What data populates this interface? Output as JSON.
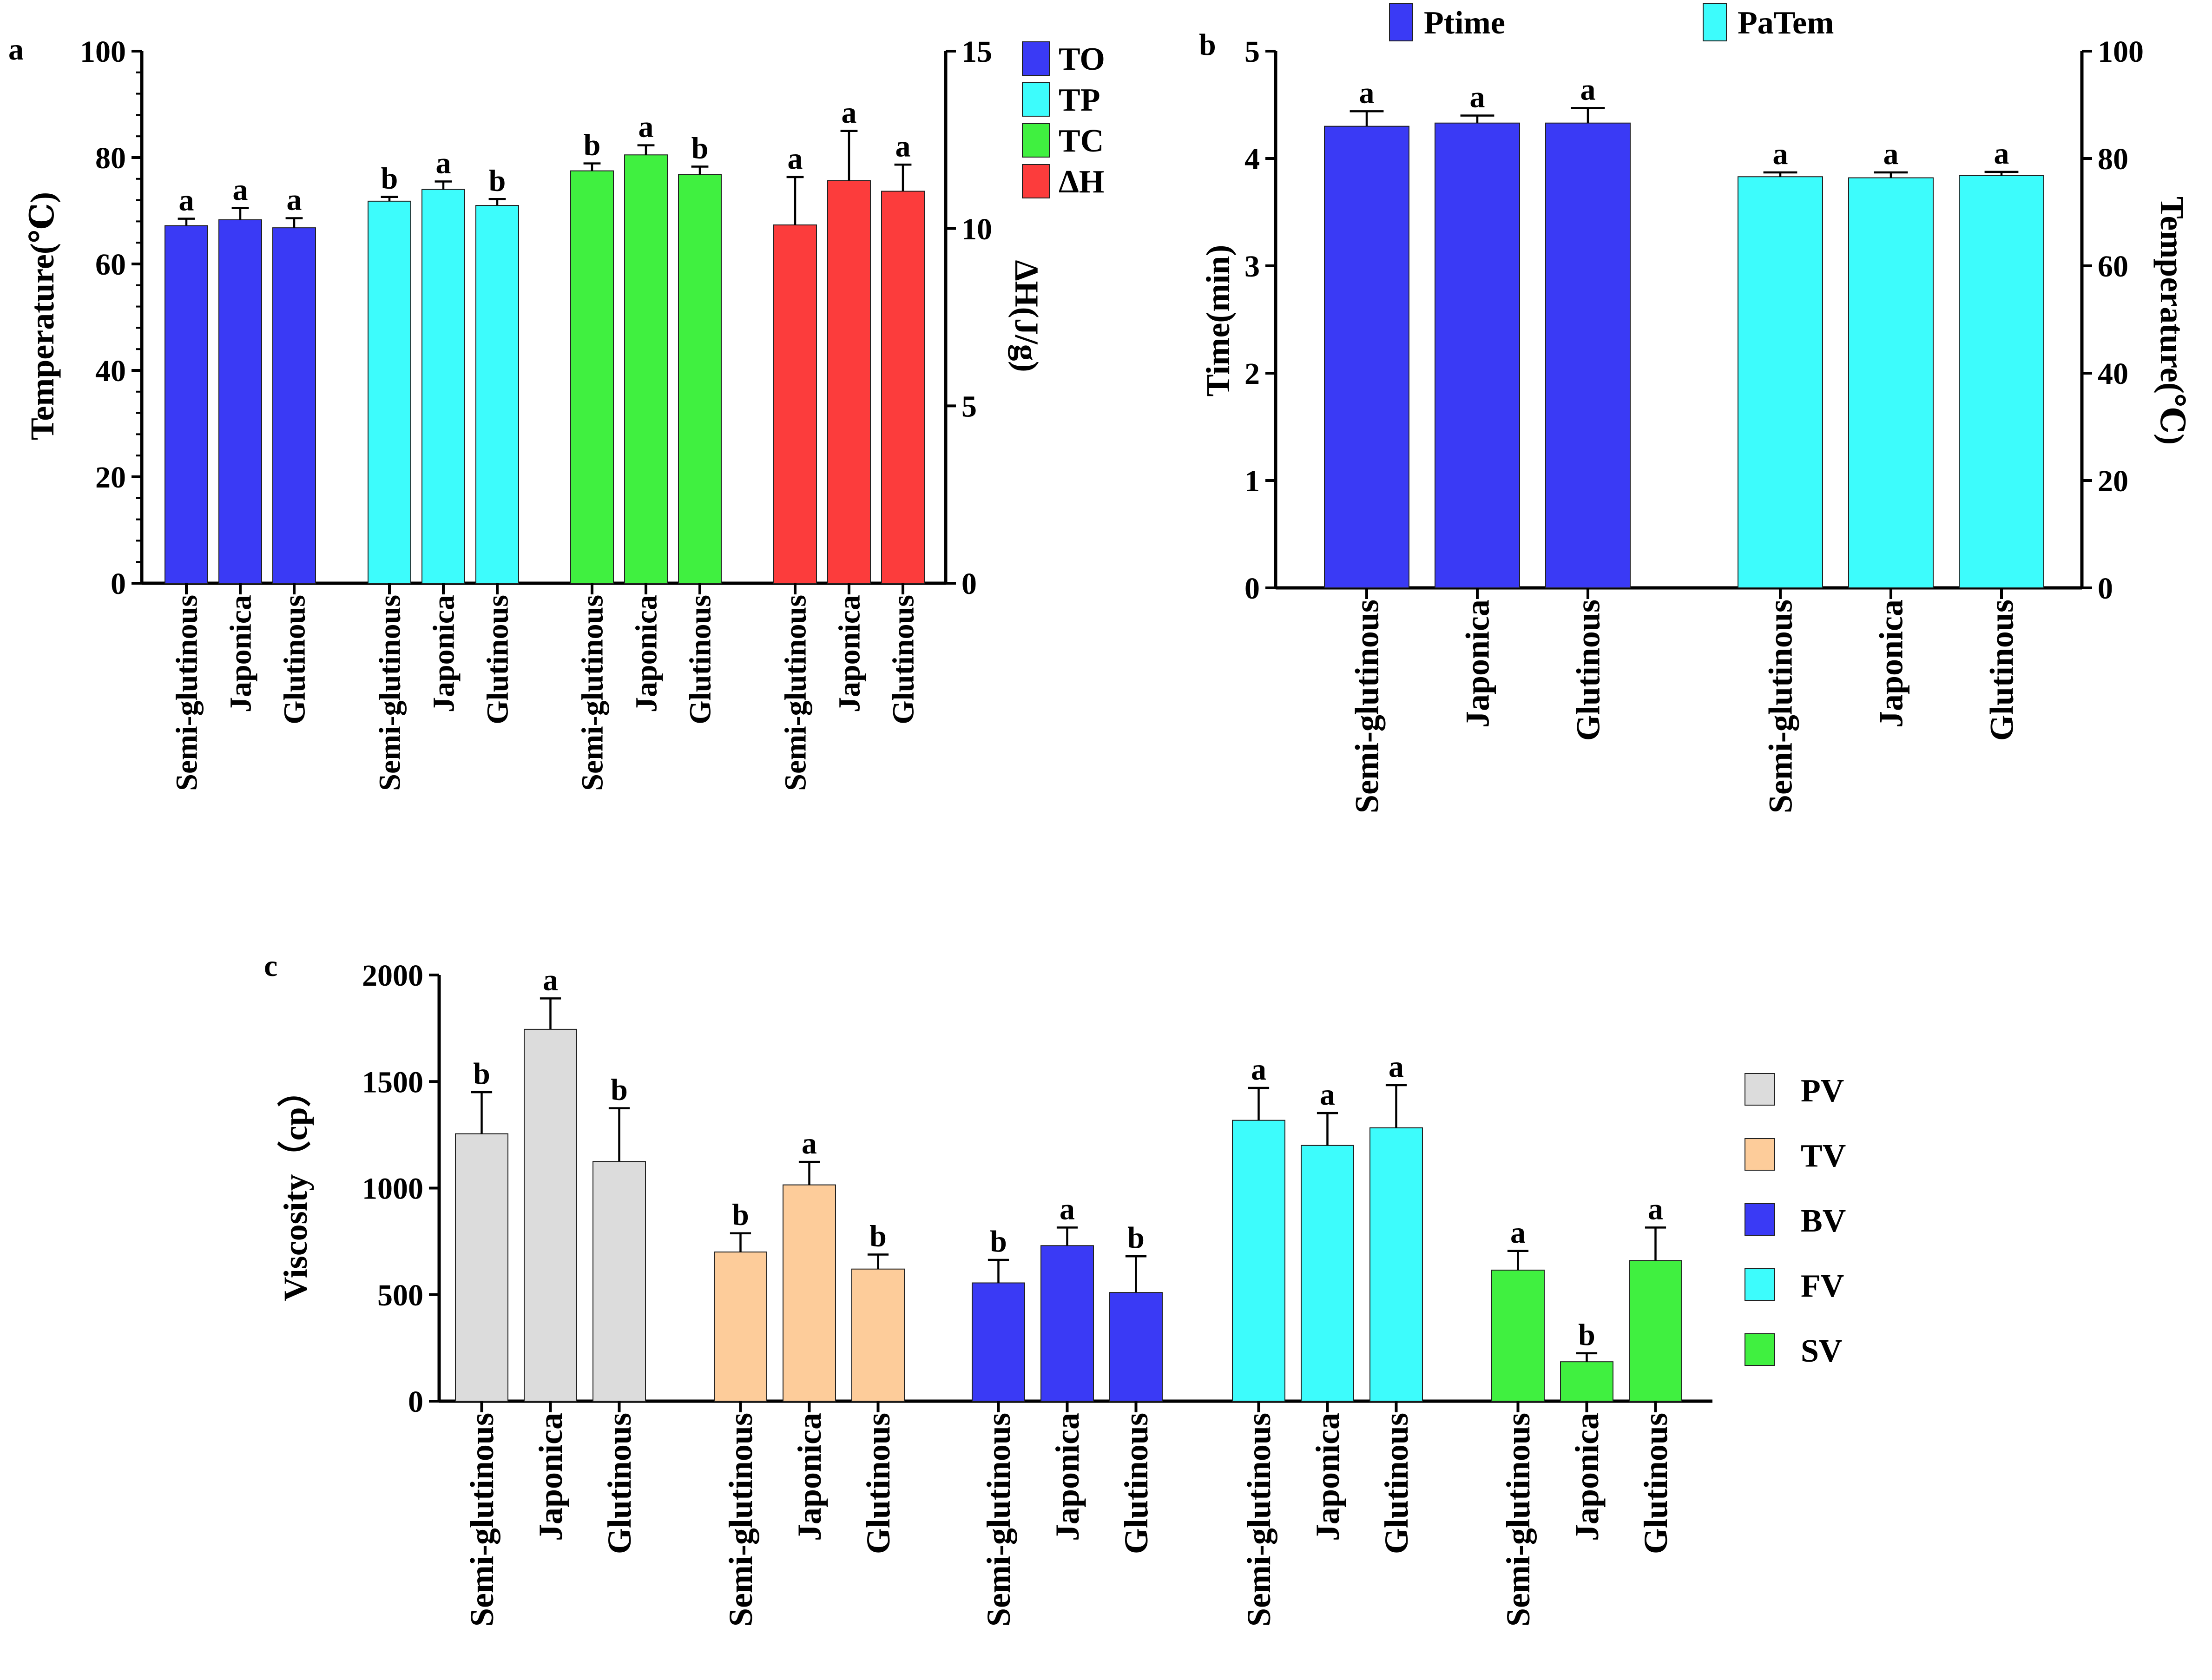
{
  "chart_data": [
    {
      "type": "bar",
      "panel_label": "a",
      "categories": [
        "Semi-glutinous",
        "Japonica",
        "Glutinous"
      ],
      "ylabel_left": "Temperature(℃)",
      "ylabel_right": "ΔH(J/g)",
      "ylim_left": [
        0,
        100
      ],
      "yticks_left": [
        "0",
        "20",
        "40",
        "60",
        "80",
        "100"
      ],
      "ylim_right": [
        0,
        15
      ],
      "yticks_right": [
        "0",
        "5",
        "10",
        "15"
      ],
      "legend_position": "top-right",
      "series": [
        {
          "name": "TO",
          "axis": "left",
          "color": "#3a3af5",
          "values": [
            67.2,
            68.3,
            66.8
          ],
          "errors": [
            1.3,
            2.2,
            1.8
          ],
          "letters": [
            "a",
            "a",
            "a"
          ]
        },
        {
          "name": "TP",
          "axis": "left",
          "color": "#3dfcfc",
          "values": [
            71.8,
            74.0,
            71.0
          ],
          "errors": [
            0.8,
            1.5,
            1.2
          ],
          "letters": [
            "b",
            "a",
            "b"
          ]
        },
        {
          "name": "TC",
          "axis": "left",
          "color": "#40f040",
          "values": [
            77.5,
            80.5,
            76.8
          ],
          "errors": [
            1.4,
            1.8,
            1.5
          ],
          "letters": [
            "b",
            "a",
            "b"
          ]
        },
        {
          "name": "ΔH",
          "axis": "right",
          "color": "#fc3c3c",
          "values": [
            10.1,
            11.35,
            11.05
          ],
          "errors": [
            1.35,
            1.4,
            0.75
          ],
          "letters": [
            "a",
            "a",
            "a"
          ]
        }
      ]
    },
    {
      "type": "bar",
      "panel_label": "b",
      "categories": [
        "Semi-glutinous",
        "Japonica",
        "Glutinous"
      ],
      "ylabel_left": "Time(min)",
      "ylabel_right": "Temperature(℃)",
      "ylim_left": [
        0,
        5
      ],
      "yticks_left": [
        "0",
        "1",
        "2",
        "3",
        "4",
        "5"
      ],
      "ylim_right": [
        0,
        100
      ],
      "yticks_right": [
        "0",
        "20",
        "40",
        "60",
        "80",
        "100"
      ],
      "legend_position": "top",
      "series": [
        {
          "name": "Ptime",
          "axis": "left",
          "color": "#3a3af5",
          "values": [
            4.3,
            4.33,
            4.33
          ],
          "errors": [
            0.14,
            0.07,
            0.14
          ],
          "letters": [
            "a",
            "a",
            "a"
          ]
        },
        {
          "name": "PaTem",
          "axis": "right",
          "color": "#3dfcfc",
          "values": [
            76.6,
            76.4,
            76.8
          ],
          "errors": [
            0.8,
            1.0,
            0.7
          ],
          "letters": [
            "a",
            "a",
            "a"
          ]
        }
      ]
    },
    {
      "type": "bar",
      "panel_label": "c",
      "categories": [
        "Semi-glutinous",
        "Japonica",
        "Glutinous"
      ],
      "ylabel_left": "Viscosity（cp）",
      "ylim_left": [
        0,
        2000
      ],
      "yticks_left": [
        "0",
        "500",
        "1000",
        "1500",
        "2000"
      ],
      "legend_position": "right",
      "series": [
        {
          "name": "PV",
          "color": "#dcdcdc",
          "values": [
            1255,
            1745,
            1125
          ],
          "errors": [
            195,
            145,
            250
          ],
          "letters": [
            "b",
            "a",
            "b"
          ]
        },
        {
          "name": "TV",
          "color": "#fdcc9a",
          "values": [
            700,
            1015,
            620
          ],
          "errors": [
            88,
            108,
            68
          ],
          "letters": [
            "b",
            "a",
            "b"
          ]
        },
        {
          "name": "BV",
          "color": "#3a3af5",
          "values": [
            555,
            730,
            510
          ],
          "errors": [
            108,
            85,
            170
          ],
          "letters": [
            "b",
            "a",
            "b"
          ]
        },
        {
          "name": "FV",
          "color": "#3dfcfc",
          "values": [
            1318,
            1200,
            1283
          ],
          "errors": [
            152,
            152,
            200
          ],
          "letters": [
            "a",
            "a",
            "a"
          ]
        },
        {
          "name": "SV",
          "color": "#40f040",
          "values": [
            615,
            185,
            660
          ],
          "errors": [
            90,
            40,
            155
          ],
          "letters": [
            "a",
            "b",
            "a"
          ]
        }
      ]
    }
  ]
}
